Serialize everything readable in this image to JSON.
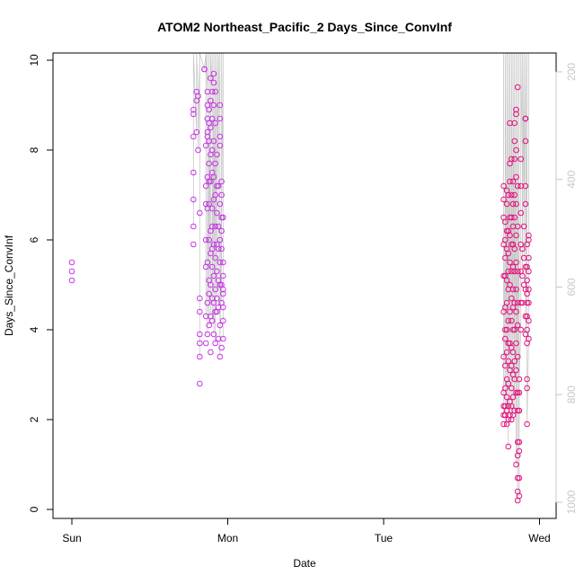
{
  "chart_data": {
    "type": "scatter",
    "title": "ATOM2 Northeast_Pacific_2 Days_Since_ConvInf",
    "xlabel": "Date",
    "ylabel": "Days_Since_ConvInf",
    "x_tick_labels": [
      "Sun",
      "Mon",
      "Tue",
      "Wed"
    ],
    "x_ticks": [
      "Sun",
      "Mon",
      "Tue",
      "Wed"
    ],
    "xlim": [
      "Sun 00:00",
      "Wed 03:00"
    ],
    "ylim": [
      0,
      10
    ],
    "y_ticks": [
      0,
      2,
      4,
      6,
      8,
      10
    ],
    "y2_ticks": [
      200,
      400,
      600,
      800,
      1000
    ],
    "y2lim": [
      1030,
      165
    ],
    "y2_reversed": true,
    "grid": false,
    "marker": "open-circle",
    "colors": {
      "early": "#c837e6",
      "late": "#e6127f",
      "line": "#c8c8c8",
      "axis": "#000000",
      "axis_right": "#c8c8c8"
    },
    "series": [
      {
        "day": "Sun",
        "values": [
          [
            0.0,
            5.1
          ],
          [
            0.0,
            5.3
          ],
          [
            0.0,
            5.5
          ]
        ]
      },
      {
        "day": "Sun/Mon",
        "values": [
          [
            0.78,
            5.9
          ],
          [
            0.78,
            6.3
          ],
          [
            0.78,
            6.9
          ],
          [
            0.78,
            7.5
          ],
          [
            0.78,
            8.3
          ],
          [
            0.78,
            8.8
          ],
          [
            0.78,
            8.9
          ],
          [
            0.8,
            8.4
          ],
          [
            0.8,
            9.1
          ],
          [
            0.8,
            9.3
          ],
          [
            0.81,
            9.2
          ],
          [
            0.81,
            8.0
          ],
          [
            0.82,
            2.8
          ],
          [
            0.82,
            3.4
          ],
          [
            0.82,
            3.7
          ],
          [
            0.82,
            3.9
          ],
          [
            0.82,
            4.4
          ],
          [
            0.82,
            4.7
          ],
          [
            0.82,
            6.6
          ],
          [
            0.85,
            9.8
          ],
          [
            0.85,
            9.8
          ],
          [
            0.86,
            8.1
          ],
          [
            0.86,
            7.2
          ],
          [
            0.86,
            6.8
          ],
          [
            0.86,
            6.0
          ],
          [
            0.86,
            5.4
          ],
          [
            0.86,
            4.3
          ],
          [
            0.86,
            3.7
          ],
          [
            0.87,
            9.3
          ],
          [
            0.87,
            9.0
          ],
          [
            0.87,
            8.7
          ],
          [
            0.87,
            8.4
          ],
          [
            0.87,
            8.3
          ],
          [
            0.87,
            7.4
          ],
          [
            0.87,
            6.7
          ],
          [
            0.87,
            5.5
          ],
          [
            0.87,
            4.6
          ],
          [
            0.87,
            3.9
          ],
          [
            0.88,
            8.9
          ],
          [
            0.88,
            8.6
          ],
          [
            0.88,
            8.2
          ],
          [
            0.88,
            7.7
          ],
          [
            0.88,
            7.3
          ],
          [
            0.88,
            6.8
          ],
          [
            0.88,
            6.0
          ],
          [
            0.88,
            5.1
          ],
          [
            0.88,
            4.8
          ],
          [
            0.88,
            4.1
          ],
          [
            0.89,
            9.6
          ],
          [
            0.89,
            9.1
          ],
          [
            0.89,
            8.5
          ],
          [
            0.89,
            7.9
          ],
          [
            0.89,
            7.3
          ],
          [
            0.89,
            6.2
          ],
          [
            0.89,
            5.7
          ],
          [
            0.89,
            5.0
          ],
          [
            0.89,
            4.3
          ],
          [
            0.89,
            3.5
          ],
          [
            0.9,
            9.3
          ],
          [
            0.9,
            8.7
          ],
          [
            0.9,
            8.0
          ],
          [
            0.9,
            7.5
          ],
          [
            0.9,
            6.7
          ],
          [
            0.9,
            6.3
          ],
          [
            0.9,
            5.8
          ],
          [
            0.9,
            5.4
          ],
          [
            0.9,
            4.7
          ],
          [
            0.9,
            4.2
          ],
          [
            0.91,
            9.7
          ],
          [
            0.91,
            9.5
          ],
          [
            0.91,
            9.0
          ],
          [
            0.91,
            8.2
          ],
          [
            0.91,
            7.4
          ],
          [
            0.91,
            6.9
          ],
          [
            0.91,
            5.9
          ],
          [
            0.91,
            5.2
          ],
          [
            0.91,
            4.6
          ],
          [
            0.91,
            3.9
          ],
          [
            0.92,
            9.3
          ],
          [
            0.92,
            8.6
          ],
          [
            0.92,
            7.7
          ],
          [
            0.92,
            7.0
          ],
          [
            0.92,
            6.3
          ],
          [
            0.92,
            5.6
          ],
          [
            0.92,
            4.9
          ],
          [
            0.92,
            4.4
          ],
          [
            0.92,
            3.7
          ],
          [
            0.93,
            7.9
          ],
          [
            0.93,
            7.2
          ],
          [
            0.93,
            6.6
          ],
          [
            0.93,
            5.9
          ],
          [
            0.93,
            5.3
          ],
          [
            0.93,
            4.7
          ],
          [
            0.93,
            4.4
          ],
          [
            0.94,
            7.2
          ],
          [
            0.94,
            6.3
          ],
          [
            0.94,
            5.8
          ],
          [
            0.94,
            5.1
          ],
          [
            0.94,
            4.5
          ],
          [
            0.94,
            3.8
          ],
          [
            0.95,
            8.7
          ],
          [
            0.95,
            9.0
          ],
          [
            0.95,
            8.3
          ],
          [
            0.95,
            8.1
          ],
          [
            0.95,
            6.8
          ],
          [
            0.95,
            6.0
          ],
          [
            0.95,
            5.5
          ],
          [
            0.95,
            5.0
          ],
          [
            0.95,
            4.1
          ],
          [
            0.95,
            3.4
          ],
          [
            0.96,
            7.3
          ],
          [
            0.96,
            7.0
          ],
          [
            0.96,
            6.5
          ],
          [
            0.96,
            6.2
          ],
          [
            0.96,
            5.8
          ],
          [
            0.96,
            5.0
          ],
          [
            0.96,
            4.6
          ],
          [
            0.96,
            3.6
          ],
          [
            0.97,
            6.5
          ],
          [
            0.97,
            5.5
          ],
          [
            0.97,
            5.2
          ],
          [
            0.97,
            4.9
          ],
          [
            0.97,
            4.8
          ],
          [
            0.97,
            4.5
          ],
          [
            0.97,
            4.2
          ],
          [
            0.97,
            3.8
          ]
        ]
      },
      {
        "day": "Tue/Wed",
        "values": [
          [
            2.77,
            1.9
          ],
          [
            2.77,
            2.1
          ],
          [
            2.77,
            2.3
          ],
          [
            2.77,
            2.6
          ],
          [
            2.77,
            3.4
          ],
          [
            2.77,
            4.4
          ],
          [
            2.77,
            5.2
          ],
          [
            2.77,
            5.9
          ],
          [
            2.77,
            6.5
          ],
          [
            2.77,
            6.9
          ],
          [
            2.77,
            7.2
          ],
          [
            2.78,
            2.1
          ],
          [
            2.78,
            2.3
          ],
          [
            2.78,
            2.7
          ],
          [
            2.78,
            3.2
          ],
          [
            2.78,
            3.8
          ],
          [
            2.78,
            4.0
          ],
          [
            2.78,
            4.5
          ],
          [
            2.78,
            5.2
          ],
          [
            2.78,
            5.6
          ],
          [
            2.78,
            6.0
          ],
          [
            2.78,
            6.4
          ],
          [
            2.79,
            1.9
          ],
          [
            2.79,
            2.2
          ],
          [
            2.79,
            2.5
          ],
          [
            2.79,
            2.9
          ],
          [
            2.79,
            3.5
          ],
          [
            2.79,
            4.0
          ],
          [
            2.79,
            4.6
          ],
          [
            2.79,
            5.1
          ],
          [
            2.79,
            5.8
          ],
          [
            2.79,
            6.2
          ],
          [
            2.79,
            6.8
          ],
          [
            2.79,
            7.1
          ],
          [
            2.8,
            1.4
          ],
          [
            2.8,
            2.0
          ],
          [
            2.8,
            2.3
          ],
          [
            2.8,
            2.8
          ],
          [
            2.8,
            3.3
          ],
          [
            2.8,
            3.7
          ],
          [
            2.8,
            4.2
          ],
          [
            2.8,
            4.9
          ],
          [
            2.8,
            5.3
          ],
          [
            2.8,
            5.7
          ],
          [
            2.8,
            6.2
          ],
          [
            2.8,
            7.0
          ],
          [
            2.81,
            2.1
          ],
          [
            2.81,
            2.4
          ],
          [
            2.81,
            3.1
          ],
          [
            2.81,
            3.7
          ],
          [
            2.81,
            4.4
          ],
          [
            2.81,
            5.0
          ],
          [
            2.81,
            5.5
          ],
          [
            2.81,
            6.1
          ],
          [
            2.81,
            6.5
          ],
          [
            2.81,
            7.3
          ],
          [
            2.81,
            7.7
          ],
          [
            2.81,
            8.6
          ],
          [
            2.82,
            2.0
          ],
          [
            2.82,
            2.3
          ],
          [
            2.82,
            2.7
          ],
          [
            2.82,
            3.2
          ],
          [
            2.82,
            3.6
          ],
          [
            2.82,
            4.2
          ],
          [
            2.82,
            4.7
          ],
          [
            2.82,
            5.3
          ],
          [
            2.82,
            5.9
          ],
          [
            2.82,
            6.5
          ],
          [
            2.82,
            7.0
          ],
          [
            2.82,
            7.8
          ],
          [
            2.83,
            2.1
          ],
          [
            2.83,
            2.5
          ],
          [
            2.83,
            3.0
          ],
          [
            2.83,
            3.5
          ],
          [
            2.83,
            4.0
          ],
          [
            2.83,
            4.5
          ],
          [
            2.83,
            4.9
          ],
          [
            2.83,
            5.4
          ],
          [
            2.83,
            5.9
          ],
          [
            2.83,
            6.3
          ],
          [
            2.83,
            6.8
          ],
          [
            2.83,
            7.3
          ],
          [
            2.84,
            2.2
          ],
          [
            2.84,
            2.9
          ],
          [
            2.84,
            3.3
          ],
          [
            2.84,
            4.0
          ],
          [
            2.84,
            4.6
          ],
          [
            2.84,
            5.3
          ],
          [
            2.84,
            5.8
          ],
          [
            2.84,
            6.5
          ],
          [
            2.84,
            7.0
          ],
          [
            2.84,
            7.8
          ],
          [
            2.84,
            8.2
          ],
          [
            2.84,
            8.6
          ],
          [
            2.85,
            1.0
          ],
          [
            2.85,
            2.6
          ],
          [
            2.85,
            3.1
          ],
          [
            2.85,
            3.7
          ],
          [
            2.85,
            4.4
          ],
          [
            2.85,
            4.9
          ],
          [
            2.85,
            5.5
          ],
          [
            2.85,
            6.1
          ],
          [
            2.85,
            6.8
          ],
          [
            2.85,
            7.4
          ],
          [
            2.85,
            8.0
          ],
          [
            2.85,
            8.8
          ],
          [
            2.85,
            8.9
          ],
          [
            2.86,
            0.2
          ],
          [
            2.86,
            0.4
          ],
          [
            2.86,
            0.7
          ],
          [
            2.86,
            1.2
          ],
          [
            2.86,
            1.5
          ],
          [
            2.86,
            2.2
          ],
          [
            2.86,
            2.6
          ],
          [
            2.86,
            3.4
          ],
          [
            2.86,
            4.1
          ],
          [
            2.86,
            4.6
          ],
          [
            2.86,
            5.3
          ],
          [
            2.86,
            6.3
          ],
          [
            2.86,
            7.2
          ],
          [
            2.86,
            9.4
          ],
          [
            2.87,
            0.3
          ],
          [
            2.87,
            0.7
          ],
          [
            2.87,
            1.3
          ],
          [
            2.87,
            1.5
          ],
          [
            2.87,
            2.2
          ],
          [
            2.87,
            2.6
          ],
          [
            2.87,
            2.9
          ],
          [
            2.88,
            4.0
          ],
          [
            2.88,
            4.6
          ],
          [
            2.88,
            5.3
          ],
          [
            2.88,
            5.9
          ],
          [
            2.88,
            6.6
          ],
          [
            2.88,
            7.2
          ],
          [
            2.88,
            7.8
          ],
          [
            2.89,
            4.6
          ],
          [
            2.89,
            5.2
          ],
          [
            2.89,
            5.8
          ],
          [
            2.9,
            5.0
          ],
          [
            2.9,
            5.6
          ],
          [
            2.9,
            6.3
          ],
          [
            2.91,
            8.7
          ],
          [
            2.91,
            8.7
          ],
          [
            2.91,
            8.2
          ],
          [
            2.91,
            7.2
          ],
          [
            2.91,
            6.8
          ],
          [
            2.91,
            5.4
          ],
          [
            2.91,
            4.9
          ],
          [
            2.91,
            4.3
          ],
          [
            2.91,
            3.9
          ],
          [
            2.92,
            3.7
          ],
          [
            2.92,
            4.0
          ],
          [
            2.92,
            4.3
          ],
          [
            2.92,
            4.6
          ],
          [
            2.92,
            4.8
          ],
          [
            2.92,
            5.1
          ],
          [
            2.92,
            5.4
          ],
          [
            2.92,
            5.9
          ],
          [
            2.92,
            2.9
          ],
          [
            2.92,
            2.7
          ],
          [
            2.92,
            1.9
          ],
          [
            2.93,
            3.8
          ],
          [
            2.93,
            4.2
          ],
          [
            2.93,
            4.6
          ],
          [
            2.93,
            4.9
          ],
          [
            2.93,
            5.3
          ],
          [
            2.93,
            5.6
          ],
          [
            2.93,
            6.0
          ],
          [
            2.93,
            6.1
          ]
        ]
      }
    ]
  }
}
